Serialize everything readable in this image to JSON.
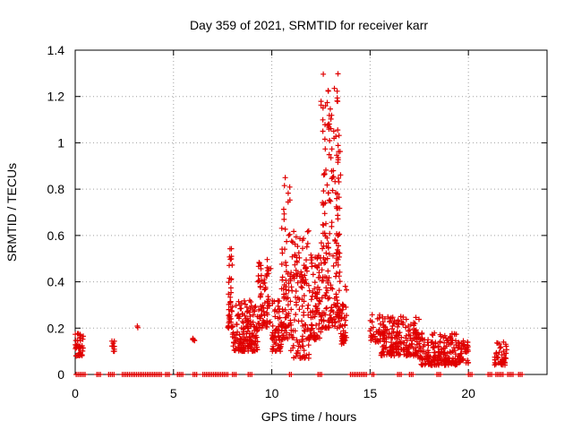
{
  "chart_data": {
    "type": "scatter",
    "title": "Day 359 of 2021, SRMTID for receiver karr",
    "xlabel": "GPS time / hours",
    "ylabel": "SRMTID / TECUs",
    "xlim": [
      0,
      24
    ],
    "ylim": [
      0,
      1.4
    ],
    "x_ticks": [
      "0",
      "5",
      "10",
      "15",
      "20"
    ],
    "y_ticks": [
      "0",
      "0.2",
      "0.4",
      "0.6",
      "0.8",
      "1",
      "1.2",
      "1.4"
    ],
    "grid": true,
    "marker": "plus",
    "color": "#e00000",
    "series": [
      {
        "name": "SRMTID",
        "clusters": [
          {
            "x": [
              0,
              0.45
            ],
            "y": [
              0.08,
              0.18
            ],
            "n": 40
          },
          {
            "x": [
              1.85,
              2.0
            ],
            "y": [
              0.1,
              0.15
            ],
            "n": 10
          },
          {
            "x": [
              3.15,
              3.2
            ],
            "y": [
              0.2,
              0.21
            ],
            "n": 2
          },
          {
            "x": [
              5.95,
              6.1
            ],
            "y": [
              0.145,
              0.16
            ],
            "n": 5
          },
          {
            "x": [
              7.75,
              8.0
            ],
            "y": [
              0.2,
              0.56
            ],
            "n": 40
          },
          {
            "x": [
              8.0,
              9.3
            ],
            "y": [
              0.1,
              0.32
            ],
            "n": 160
          },
          {
            "x": [
              9.3,
              9.95
            ],
            "y": [
              0.2,
              0.5
            ],
            "n": 70
          },
          {
            "x": [
              10.0,
              10.5
            ],
            "y": [
              0.1,
              0.32
            ],
            "n": 60
          },
          {
            "x": [
              10.5,
              10.95
            ],
            "y": [
              0.15,
              0.87
            ],
            "n": 70
          },
          {
            "x": [
              10.95,
              11.9
            ],
            "y": [
              0.07,
              0.62
            ],
            "n": 130
          },
          {
            "x": [
              11.9,
              12.5
            ],
            "y": [
              0.15,
              0.52
            ],
            "n": 80
          },
          {
            "x": [
              12.5,
              13.0
            ],
            "y": [
              0.2,
              1.32
            ],
            "n": 110
          },
          {
            "x": [
              13.0,
              13.5
            ],
            "y": [
              0.2,
              1.35
            ],
            "n": 110
          },
          {
            "x": [
              13.5,
              13.8
            ],
            "y": [
              0.13,
              0.4
            ],
            "n": 40
          },
          {
            "x": [
              15.0,
              15.5
            ],
            "y": [
              0.14,
              0.26
            ],
            "n": 30
          },
          {
            "x": [
              15.5,
              17.5
            ],
            "y": [
              0.08,
              0.25
            ],
            "n": 200
          },
          {
            "x": [
              17.5,
              19.5
            ],
            "y": [
              0.04,
              0.18
            ],
            "n": 190
          },
          {
            "x": [
              19.5,
              20.0
            ],
            "y": [
              0.05,
              0.15
            ],
            "n": 40
          },
          {
            "x": [
              21.3,
              21.95
            ],
            "y": [
              0.04,
              0.14
            ],
            "n": 45
          }
        ],
        "zero_spans": [
          [
            0.05,
            0.55
          ],
          [
            1.1,
            1.3
          ],
          [
            1.7,
            2.05
          ],
          [
            2.4,
            4.4
          ],
          [
            4.6,
            4.8
          ],
          [
            5.2,
            5.55
          ],
          [
            6.0,
            6.2
          ],
          [
            6.5,
            7.8
          ],
          [
            8.0,
            8.2
          ],
          [
            8.8,
            9.0
          ],
          [
            10.9,
            11.05
          ],
          [
            12.35,
            12.55
          ],
          [
            14.0,
            14.85
          ],
          [
            15.1,
            15.25
          ],
          [
            16.4,
            16.6
          ],
          [
            17.0,
            17.2
          ],
          [
            18.4,
            18.6
          ],
          [
            20.0,
            20.25
          ],
          [
            21.0,
            21.2
          ],
          [
            21.4,
            21.8
          ],
          [
            22.0,
            22.3
          ],
          [
            22.55,
            22.75
          ]
        ]
      }
    ]
  }
}
